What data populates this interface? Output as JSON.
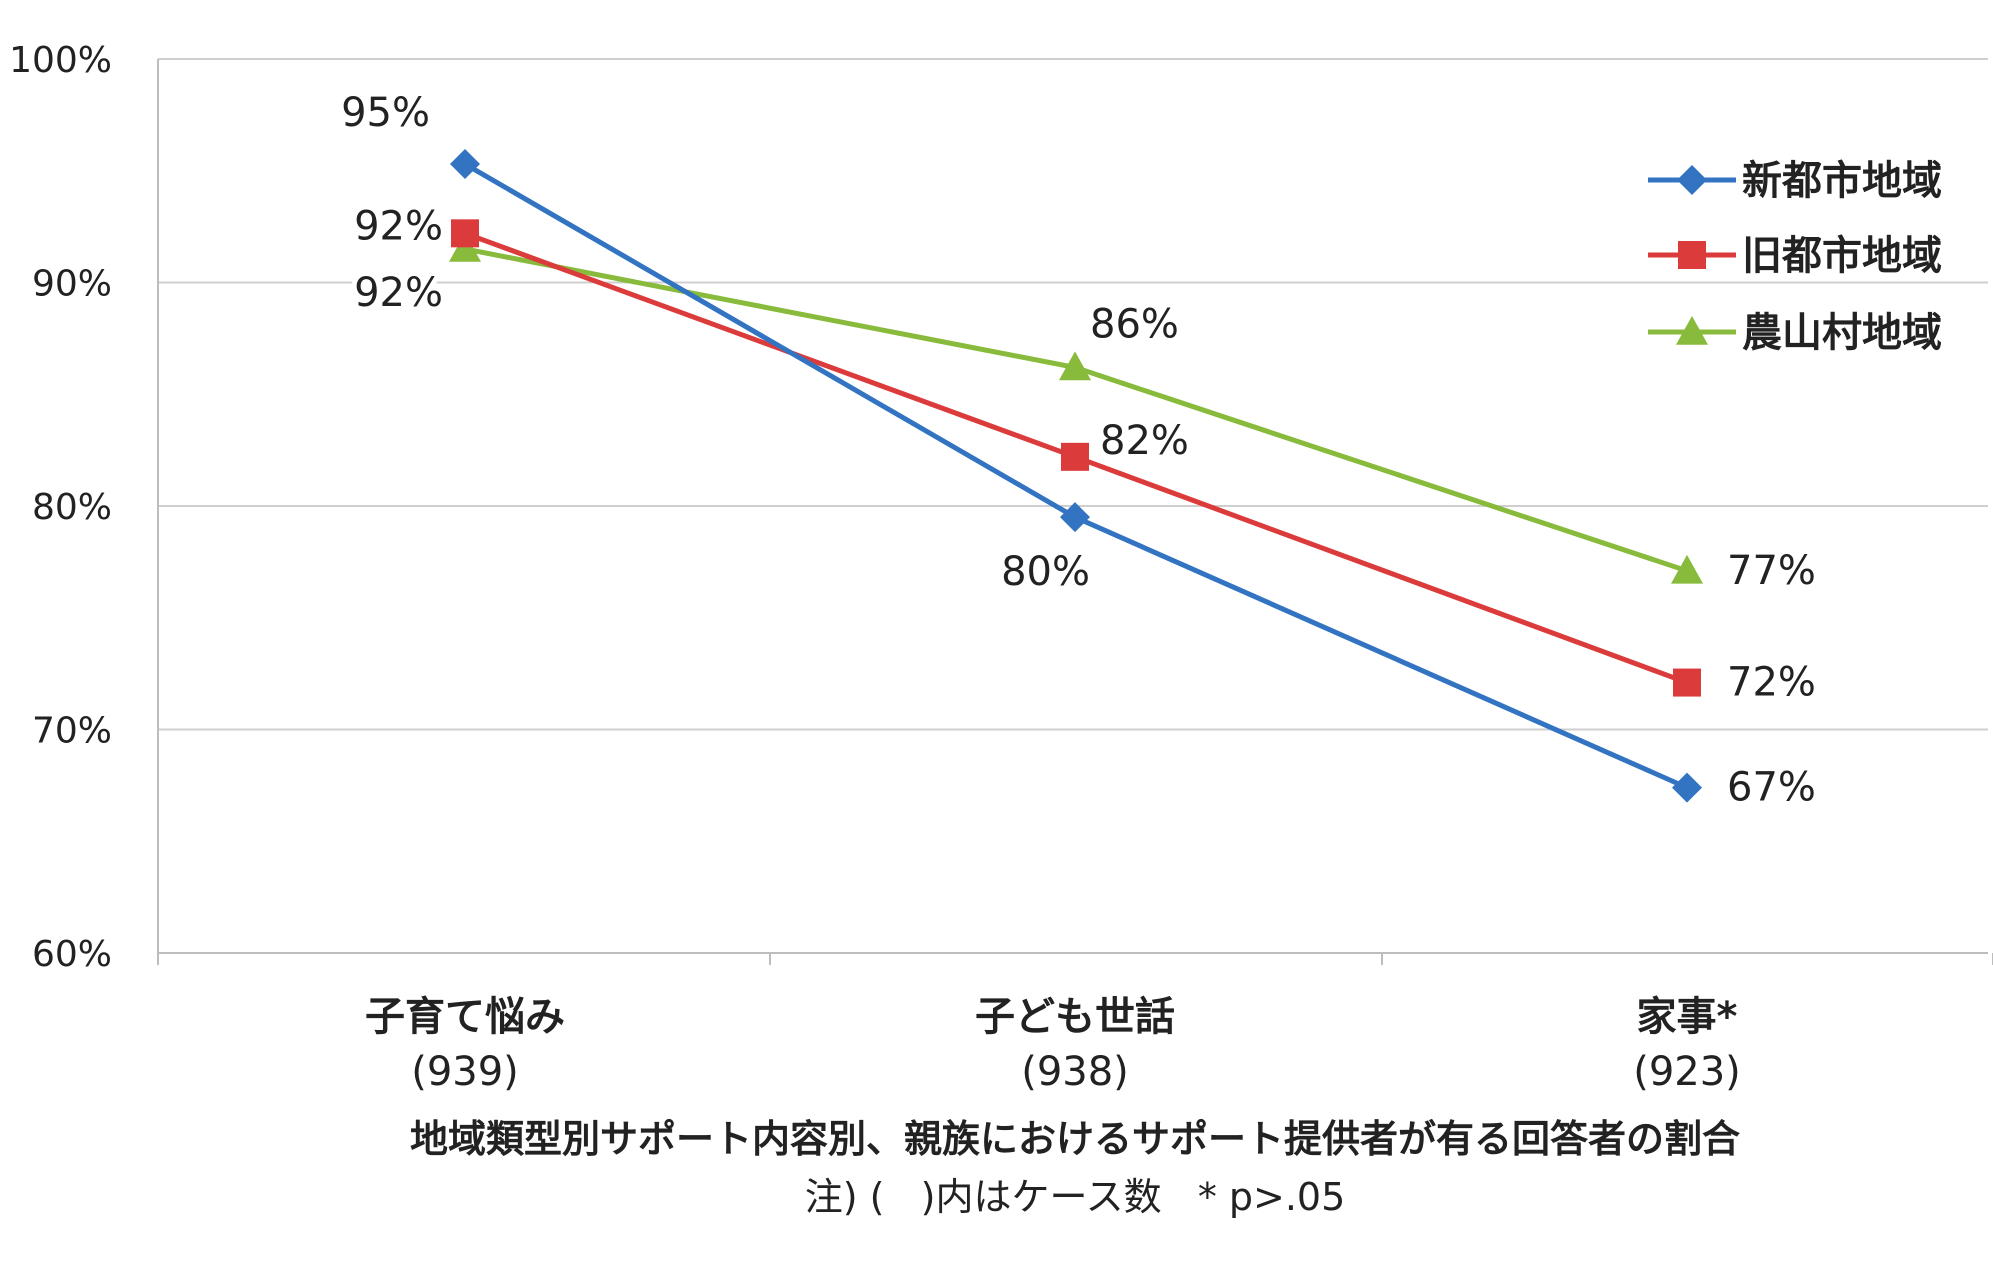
{
  "chart_data": {
    "type": "line",
    "categories": [
      "子育て悩み",
      "子ども世話",
      "家事*"
    ],
    "category_counts": [
      "(939)",
      "(938)",
      "(923)"
    ],
    "series": [
      {
        "name": "新都市地域",
        "values": [
          95,
          80,
          67
        ],
        "labels": [
          "95%",
          "80%",
          "67%"
        ],
        "color": "#3273c2",
        "marker": "diamond"
      },
      {
        "name": "旧都市地域",
        "values": [
          92,
          82,
          72
        ],
        "labels": [
          "92%",
          "82%",
          "72%"
        ],
        "color": "#dc3b3b",
        "marker": "square"
      },
      {
        "name": "農山村地域",
        "values": [
          92,
          86,
          77
        ],
        "labels": [
          "92%",
          "86%",
          "77%"
        ],
        "color": "#88bb3c",
        "marker": "triangle"
      }
    ],
    "plot_values": [
      [
        95.3,
        79.5,
        67.4
      ],
      [
        92.2,
        82.2,
        72.1
      ],
      [
        91.5,
        86.2,
        77.1
      ]
    ],
    "yticks": [
      "100%",
      "90%",
      "80%",
      "70%",
      "60%"
    ],
    "ytick_values": [
      100,
      90,
      80,
      70,
      60
    ],
    "ylim": [
      60,
      100
    ],
    "caption": "地域類型別サポート内容別、親族におけるサポート提供者が有る回答者の割合",
    "note": "注) (   )内はケース数   * p>.05",
    "legend_position": "top-right",
    "grid": true
  }
}
